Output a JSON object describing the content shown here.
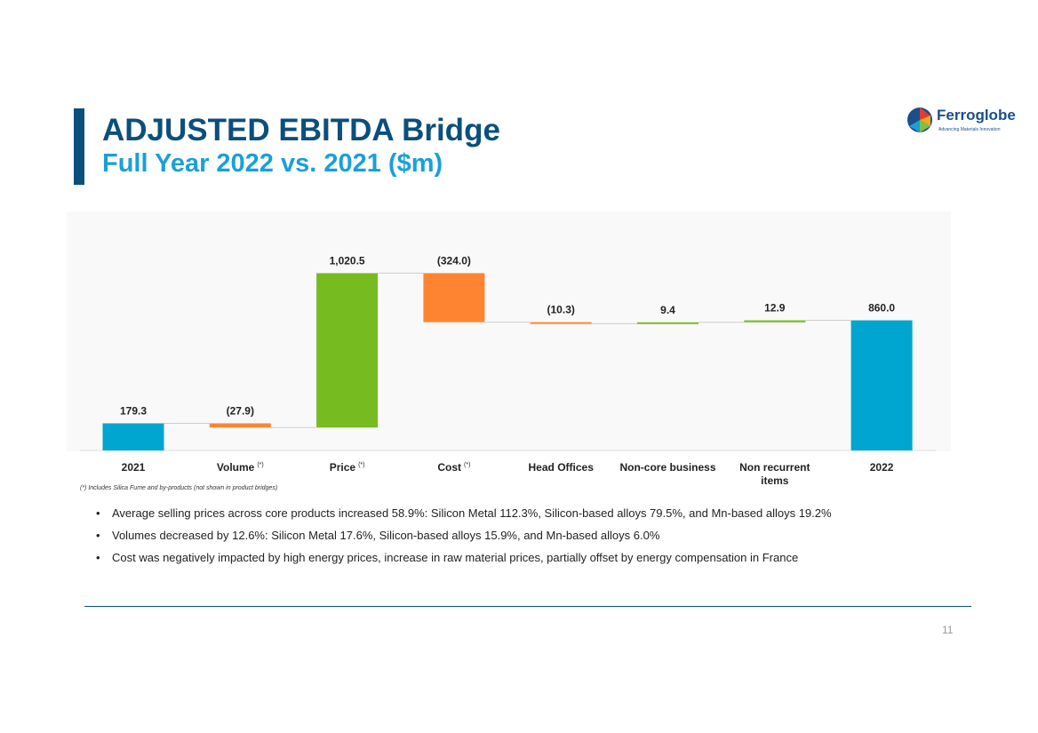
{
  "header": {
    "title": "ADJUSTED EBITDA Bridge",
    "subtitle": "Full Year 2022 vs. 2021 ($m)"
  },
  "logo": {
    "name": "Ferroglobe",
    "tagline": "Advancing Materials Innovation",
    "colors": [
      "#e63b2e",
      "#f5a623",
      "#7dc243",
      "#1aa0d8",
      "#1b4f8a"
    ]
  },
  "chart_data": {
    "type": "waterfall",
    "title": "ADJUSTED EBITDA Bridge",
    "units": "$m",
    "steps": [
      {
        "label": "2021",
        "value": 179.3,
        "kind": "total",
        "display": "179.3",
        "superscript": ""
      },
      {
        "label": "Volume",
        "value": -27.9,
        "kind": "delta",
        "display": "(27.9)",
        "superscript": "(*)"
      },
      {
        "label": "Price",
        "value": 1020.5,
        "kind": "delta",
        "display": "1,020.5",
        "superscript": "(*)"
      },
      {
        "label": "Cost",
        "value": -324.0,
        "kind": "delta",
        "display": "(324.0)",
        "superscript": "(*)"
      },
      {
        "label": "Head Offices",
        "value": -10.3,
        "kind": "delta",
        "display": "(10.3)",
        "superscript": ""
      },
      {
        "label": "Non-core business",
        "value": 9.4,
        "kind": "delta",
        "display": "9.4",
        "superscript": ""
      },
      {
        "label": "Non recurrent items",
        "value": 12.9,
        "kind": "delta",
        "display": "12.9",
        "superscript": ""
      },
      {
        "label": "2022",
        "value": 860.0,
        "kind": "total",
        "display": "860.0",
        "superscript": ""
      }
    ],
    "colors": {
      "total": "#00a6cf",
      "increase": "#76bc21",
      "decrease": "#ff8432",
      "connector": "#cccccc"
    },
    "ylim": [
      0,
      1200
    ]
  },
  "footnote": "(*) Includes Silica Fume and by-products (not shown in product bridges)",
  "bullets": [
    "Average selling prices across core products increased 58.9%: Silicon Metal 112.3%, Silicon-based alloys 79.5%, and Mn-based alloys 19.2%",
    "Volumes decreased by 12.6%: Silicon Metal 17.6%, Silicon-based alloys 15.9%, and Mn-based alloys 6.0%",
    "Cost was negatively impacted by high energy prices, increase in raw material prices, partially offset by energy compensation in France"
  ],
  "page_number": "11"
}
